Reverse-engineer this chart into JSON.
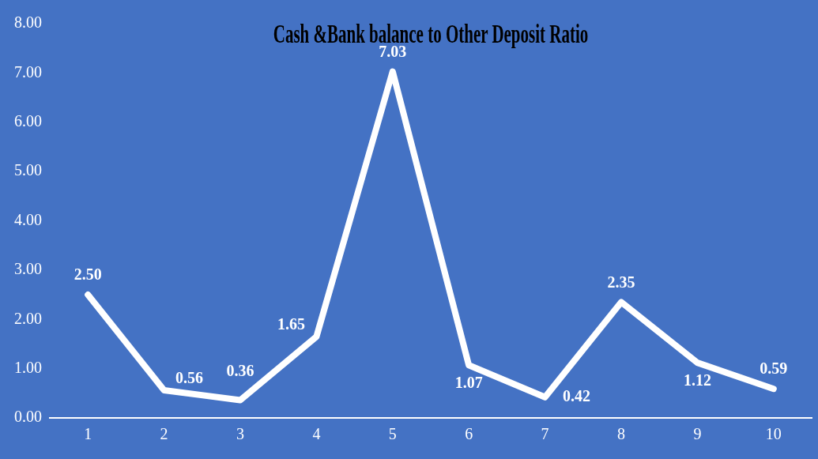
{
  "chart_data": {
    "type": "line",
    "title": "Cash &Bank balance to Other Deposit Ratio",
    "categories": [
      "1",
      "2",
      "3",
      "4",
      "5",
      "6",
      "7",
      "8",
      "9",
      "10"
    ],
    "series": [
      {
        "color": "#ffffff",
        "values": [
          2.5,
          0.56,
          0.36,
          1.65,
          7.03,
          1.07,
          0.42,
          2.35,
          1.12,
          0.59
        ]
      }
    ],
    "value_labels": [
      "2.50",
      "0.56",
      "0.36",
      "1.65",
      "7.03",
      "1.07",
      "0.42",
      "2.35",
      "1.12",
      "0.59"
    ],
    "ylim": [
      0,
      8
    ],
    "yticks": [
      {
        "value": 0,
        "label": "0.00"
      },
      {
        "value": 1,
        "label": "1.00"
      },
      {
        "value": 2,
        "label": "2.00"
      },
      {
        "value": 3,
        "label": "3.00"
      },
      {
        "value": 4,
        "label": "4.00"
      },
      {
        "value": 5,
        "label": "5.00"
      },
      {
        "value": 6,
        "label": "6.00"
      },
      {
        "value": 7,
        "label": "7.00"
      },
      {
        "value": 8,
        "label": "8.00"
      }
    ],
    "grid": false,
    "legend": false,
    "marker": "none",
    "line_style": "solid"
  }
}
